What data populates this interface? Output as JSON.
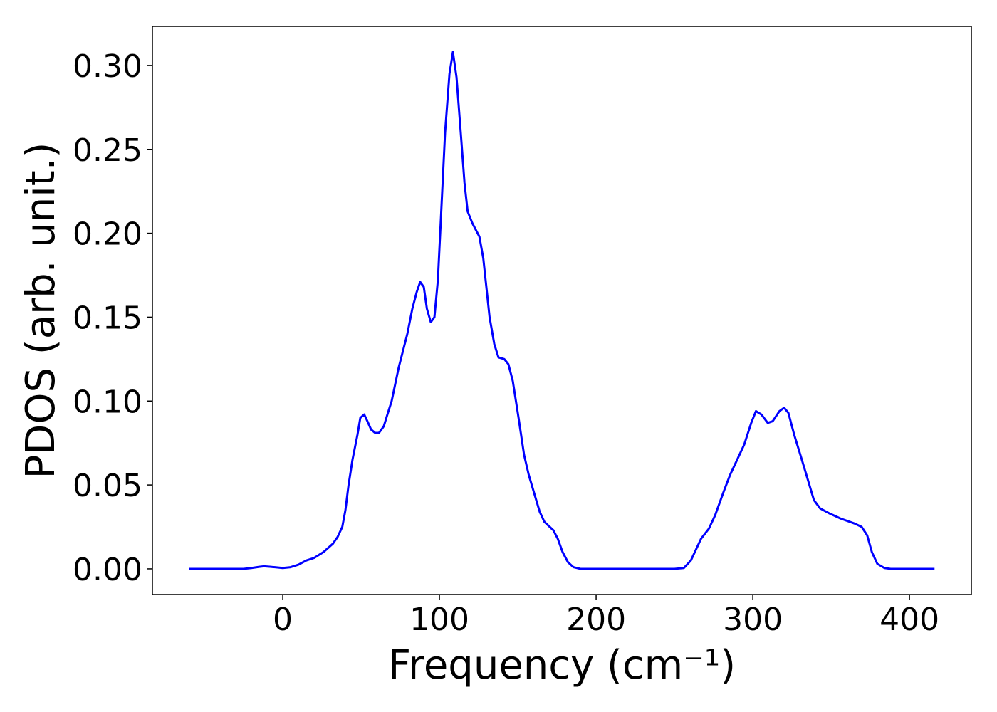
{
  "chart_data": {
    "type": "line",
    "xlabel": "Frequency (cm⁻¹)",
    "ylabel": "PDOS (arb. unit.)",
    "x": [
      -60,
      -40,
      -25,
      -20,
      -15,
      -12,
      -5,
      0,
      5,
      10,
      15,
      20,
      26,
      32,
      35,
      38,
      40,
      42,
      44.5,
      47.7,
      49.5,
      52,
      54,
      56.4,
      59,
      61.4,
      64.5,
      66.8,
      69.5,
      74,
      79.5,
      82.7,
      85.5,
      87.7,
      90,
      92,
      94.5,
      96.8,
      99,
      101,
      103.6,
      106.4,
      108.6,
      110.9,
      113.6,
      116,
      118,
      121,
      125.5,
      128,
      132,
      135,
      137.7,
      141.4,
      144,
      146.8,
      150.5,
      154,
      157,
      160.5,
      164,
      167,
      172.7,
      175.5,
      178.6,
      182,
      185.5,
      190,
      220,
      250,
      256,
      260.5,
      264,
      267,
      272,
      276,
      281,
      285.5,
      290,
      294.5,
      299,
      302,
      305.5,
      309.5,
      312.7,
      317,
      320,
      322.7,
      326.4,
      331,
      335.5,
      339,
      343,
      349,
      356,
      365,
      369.5,
      373,
      376,
      379.5,
      384,
      388,
      416
    ],
    "values": [
      0,
      0,
      0,
      0.0005,
      0.0012,
      0.0015,
      0.001,
      0.0005,
      0.001,
      0.0025,
      0.005,
      0.0065,
      0.01,
      0.015,
      0.019,
      0.025,
      0.035,
      0.05,
      0.065,
      0.08,
      0.09,
      0.092,
      0.088,
      0.083,
      0.081,
      0.081,
      0.085,
      0.092,
      0.1,
      0.12,
      0.14,
      0.155,
      0.165,
      0.171,
      0.168,
      0.155,
      0.147,
      0.15,
      0.172,
      0.21,
      0.26,
      0.295,
      0.308,
      0.293,
      0.26,
      0.23,
      0.213,
      0.206,
      0.198,
      0.185,
      0.15,
      0.134,
      0.126,
      0.125,
      0.122,
      0.112,
      0.09,
      0.068,
      0.056,
      0.045,
      0.034,
      0.028,
      0.023,
      0.018,
      0.01,
      0.004,
      0.001,
      0,
      0,
      0,
      0.0005,
      0.005,
      0.012,
      0.018,
      0.024,
      0.032,
      0.045,
      0.056,
      0.065,
      0.074,
      0.087,
      0.094,
      0.092,
      0.087,
      0.088,
      0.094,
      0.096,
      0.093,
      0.08,
      0.066,
      0.052,
      0.041,
      0.036,
      0.033,
      0.03,
      0.027,
      0.025,
      0.02,
      0.01,
      0.003,
      0.0005,
      0,
      0
    ],
    "color": "#0000ff",
    "xlim": [
      -83.2,
      439.5
    ],
    "ylim": [
      -0.0153,
      0.3233
    ],
    "xticks": [
      0,
      100,
      200,
      300,
      400
    ],
    "yticks": [
      {
        "value": 0,
        "label": "0.00"
      },
      {
        "value": 0.05,
        "label": "0.05"
      },
      {
        "value": 0.1,
        "label": "0.10"
      },
      {
        "value": 0.15,
        "label": "0.15"
      },
      {
        "value": 0.2,
        "label": "0.20"
      },
      {
        "value": 0.25,
        "label": "0.25"
      },
      {
        "value": 0.3,
        "label": "0.30"
      }
    ]
  }
}
